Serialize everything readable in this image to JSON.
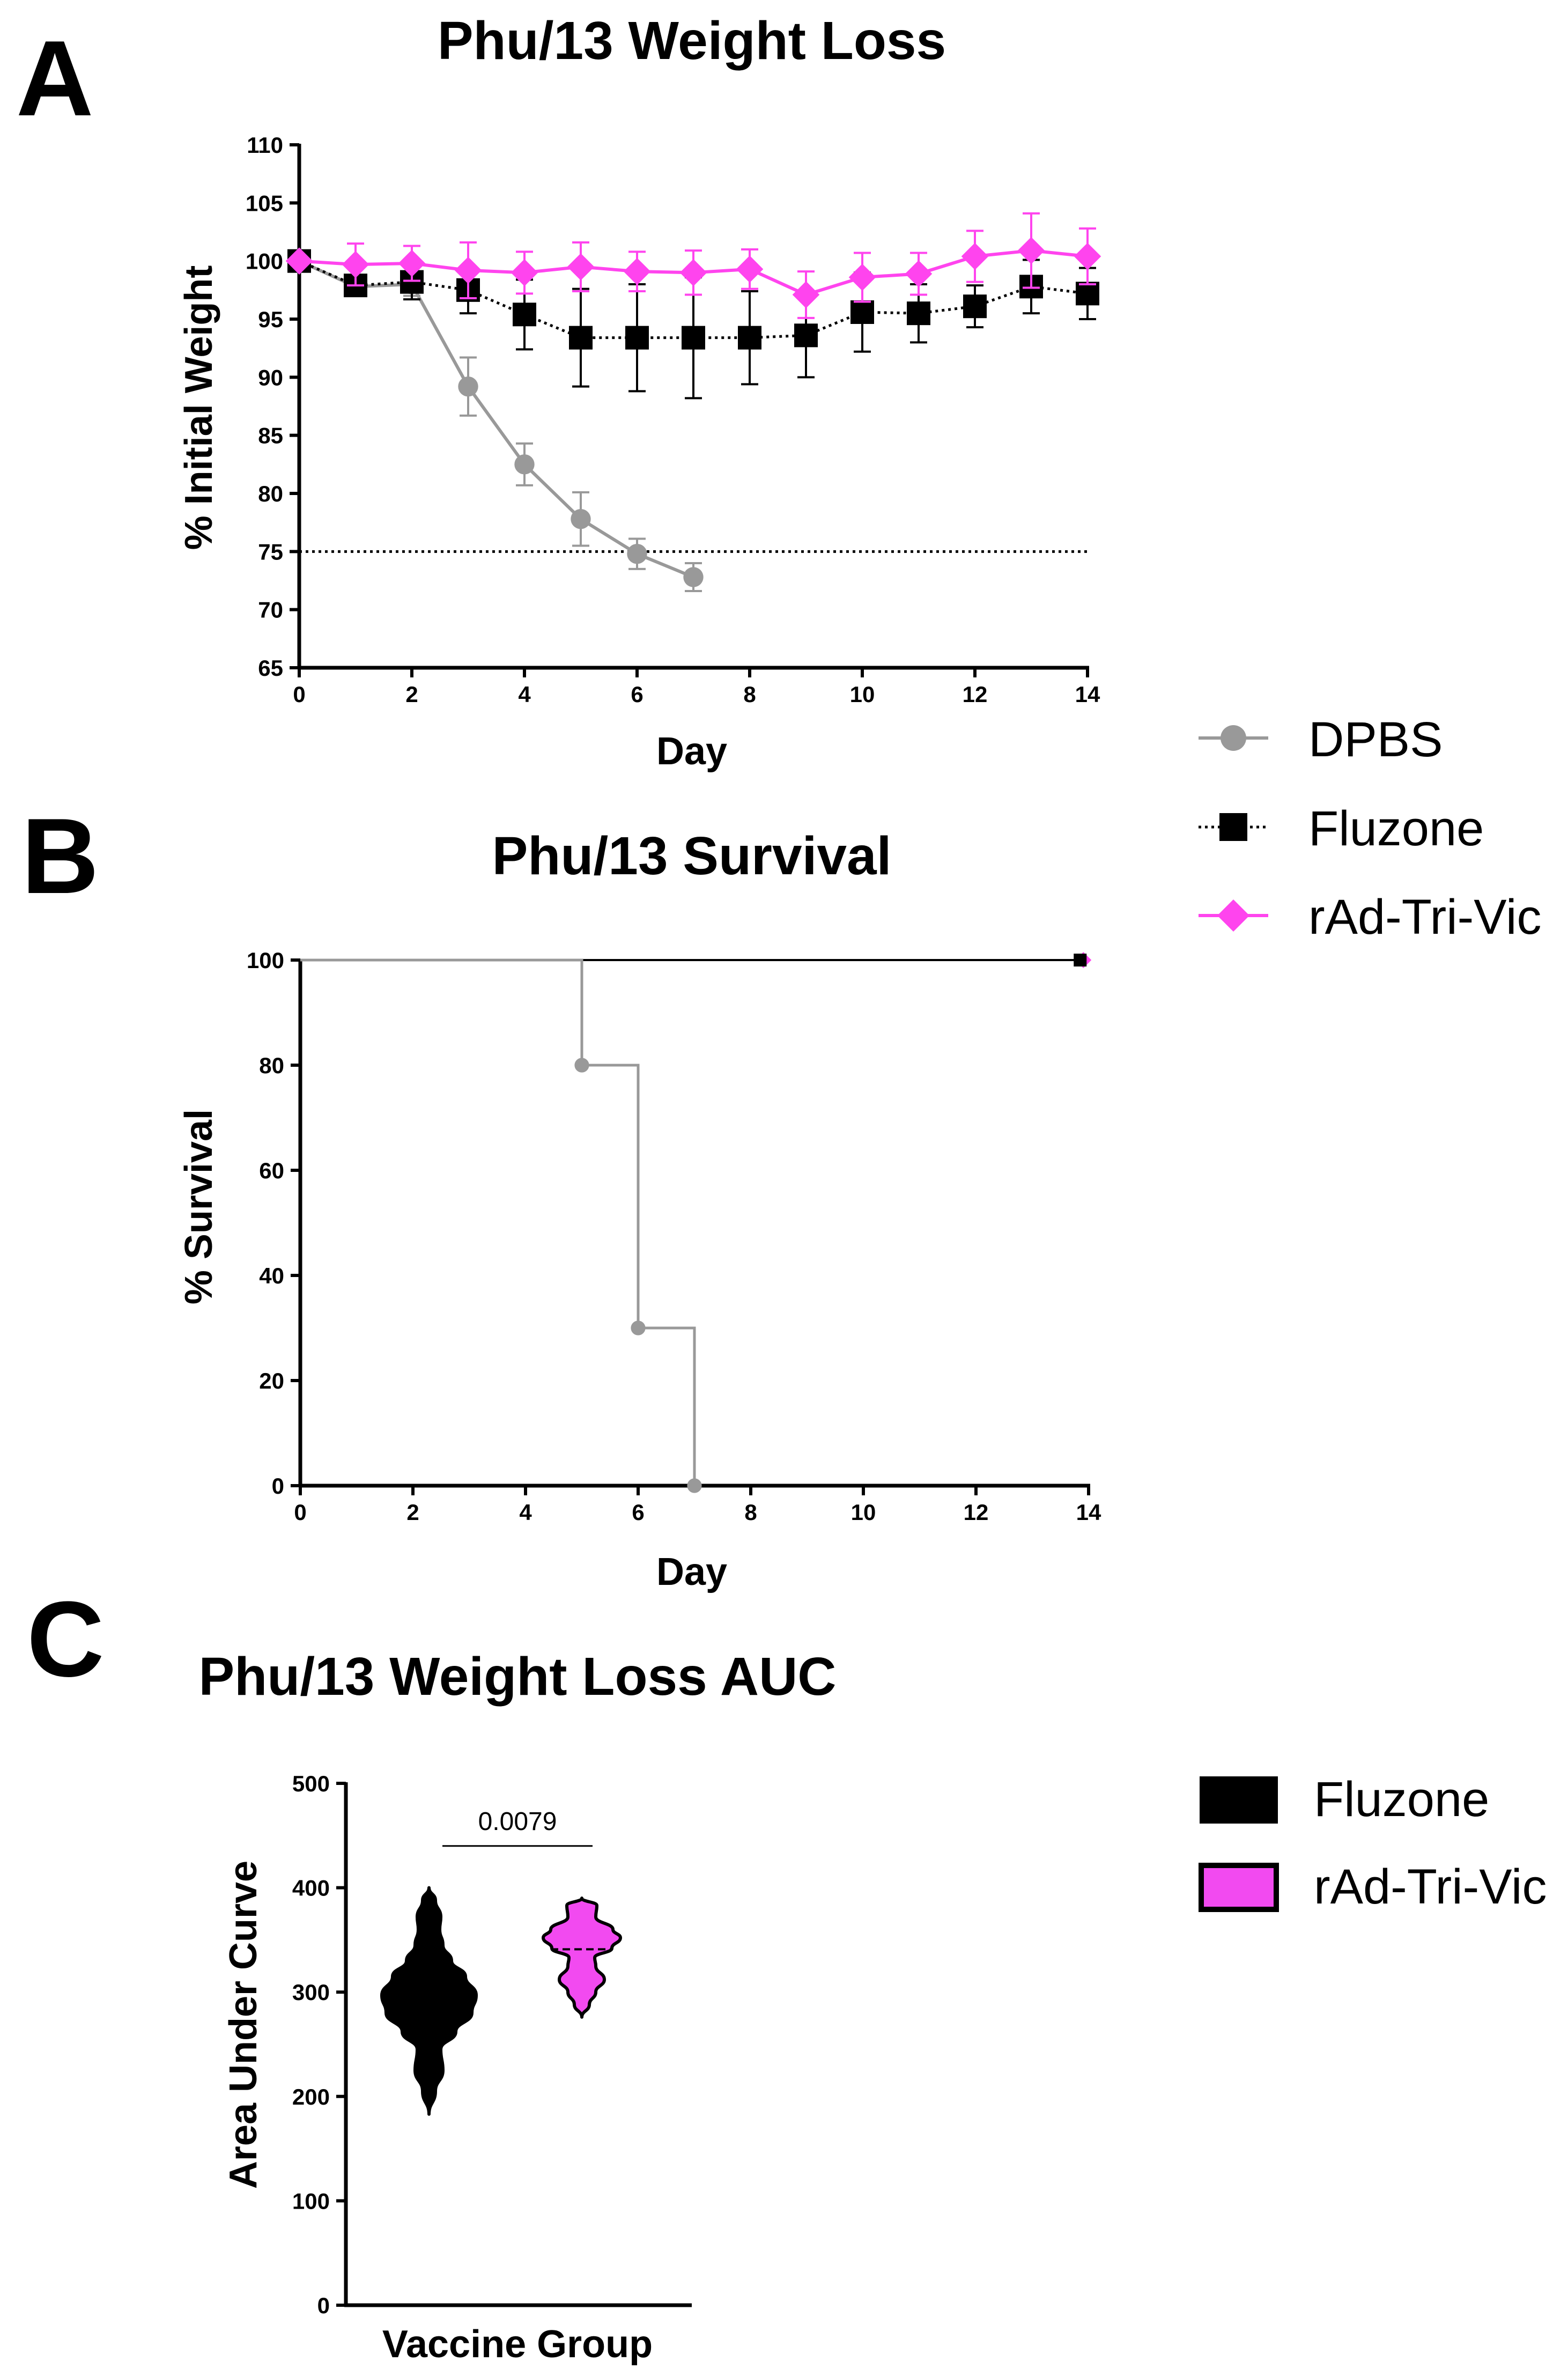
{
  "panels": {
    "a": {
      "letter": "A"
    },
    "b": {
      "letter": "B"
    },
    "c": {
      "letter": "C"
    }
  },
  "legend_top": [
    {
      "label": "DPBS",
      "color": "#999999",
      "marker": "circle"
    },
    {
      "label": "Fluzone",
      "color": "#000000",
      "marker": "square"
    },
    {
      "label": "rAd-Tri-Vic",
      "color": "#ff44ee",
      "marker": "diamond"
    }
  ],
  "legend_bottom": [
    {
      "label": "Fluzone",
      "color": "#000000"
    },
    {
      "label": "rAd-Tri-Vic",
      "color": "#f24af0"
    }
  ],
  "chart_data": [
    {
      "id": "A",
      "type": "line",
      "title": "Phu/13 Weight Loss",
      "xlabel": "Day",
      "ylabel": "% Initial Weight",
      "xlim": [
        0,
        14
      ],
      "ylim": [
        65,
        110
      ],
      "xticks": [
        0,
        2,
        4,
        6,
        8,
        10,
        12,
        14
      ],
      "yticks": [
        65,
        70,
        75,
        80,
        85,
        90,
        95,
        100,
        105,
        110
      ],
      "reference_line": 75,
      "series": [
        {
          "name": "DPBS",
          "color": "#999999",
          "x": [
            0,
            1,
            2,
            3,
            4,
            5,
            6,
            7
          ],
          "y": [
            100,
            97.8,
            98.0,
            89.2,
            82.5,
            77.8,
            74.8,
            72.8
          ],
          "err": [
            0,
            0.8,
            1.0,
            2.5,
            1.8,
            2.3,
            1.3,
            1.2
          ]
        },
        {
          "name": "Fluzone",
          "color": "#000000",
          "x": [
            0,
            1,
            2,
            3,
            4,
            5,
            6,
            7,
            8,
            9,
            10,
            11,
            12,
            13,
            14
          ],
          "y": [
            100,
            97.9,
            98.2,
            97.5,
            95.4,
            93.4,
            93.4,
            93.4,
            93.4,
            93.6,
            95.6,
            95.5,
            96.1,
            97.8,
            97.2
          ],
          "err": [
            0,
            0.6,
            1.5,
            2.0,
            3.0,
            4.2,
            4.6,
            5.2,
            4.0,
            3.6,
            3.4,
            2.5,
            1.8,
            2.3,
            2.2
          ]
        },
        {
          "name": "rAd-Tri-Vic",
          "color": "#ff44ee",
          "x": [
            0,
            1,
            2,
            3,
            4,
            5,
            6,
            7,
            8,
            9,
            10,
            11,
            12,
            13,
            14
          ],
          "y": [
            100,
            99.7,
            99.8,
            99.2,
            99.0,
            99.5,
            99.1,
            99.0,
            99.3,
            97.1,
            98.6,
            98.9,
            100.4,
            100.9,
            100.4
          ],
          "err": [
            0,
            1.8,
            1.5,
            2.4,
            1.8,
            2.1,
            1.7,
            1.9,
            1.7,
            2.0,
            2.1,
            1.8,
            2.2,
            3.2,
            2.4
          ]
        }
      ]
    },
    {
      "id": "B",
      "type": "line",
      "title": "Phu/13 Survival",
      "xlabel": "Day",
      "ylabel": "% Survival",
      "xlim": [
        0,
        14
      ],
      "ylim": [
        0,
        100
      ],
      "xticks": [
        0,
        2,
        4,
        6,
        8,
        10,
        12,
        14
      ],
      "yticks": [
        0,
        20,
        40,
        60,
        80,
        100
      ],
      "series": [
        {
          "name": "DPBS",
          "color": "#999999",
          "step": true,
          "x": [
            0,
            5,
            6,
            7
          ],
          "y": [
            100,
            80,
            30,
            0
          ]
        },
        {
          "name": "Fluzone",
          "color": "#000000",
          "step": true,
          "x": [
            0,
            14
          ],
          "y": [
            100,
            100
          ]
        },
        {
          "name": "rAd-Tri-Vic",
          "color": "#ff44ee",
          "step": true,
          "x": [
            0,
            14
          ],
          "y": [
            100,
            100
          ]
        }
      ]
    },
    {
      "id": "C",
      "type": "violin",
      "title": "Phu/13 Weight Loss AUC",
      "xlabel": "Vaccine Group",
      "ylabel": "Area Under Curve",
      "ylim": [
        0,
        500
      ],
      "yticks": [
        0,
        100,
        200,
        300,
        400,
        500
      ],
      "annotation": "0.0079",
      "groups": [
        {
          "name": "Fluzone",
          "color": "#000000",
          "min": 183,
          "max": 400,
          "median": 290
        },
        {
          "name": "rAd-Tri-Vic",
          "color": "#f24af0",
          "min": 276,
          "max": 390,
          "median": 341
        }
      ]
    }
  ]
}
